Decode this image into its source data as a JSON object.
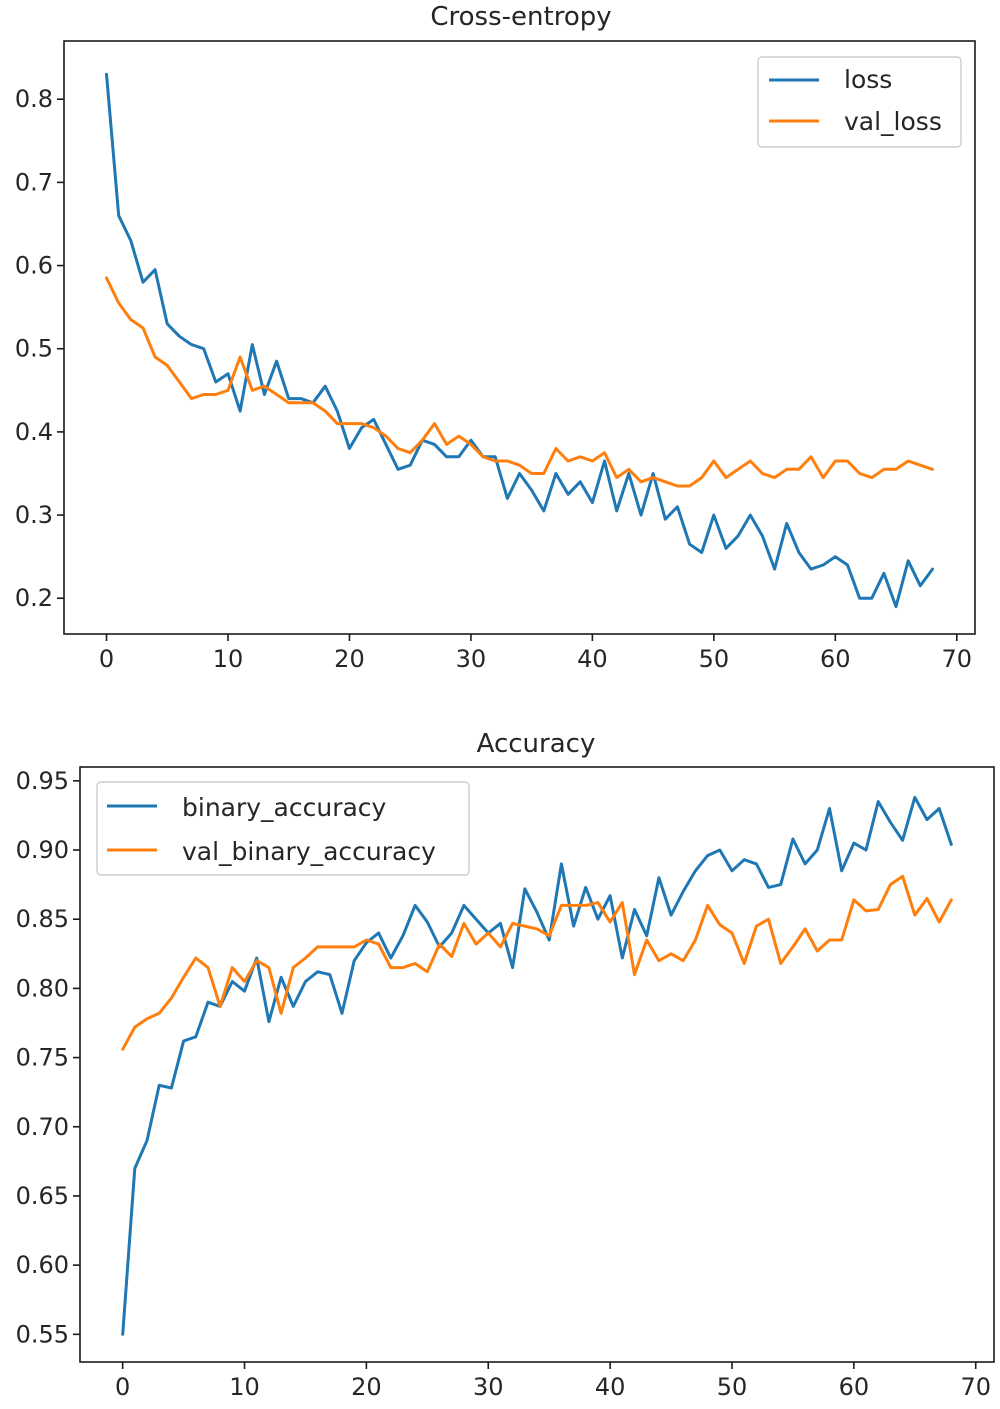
{
  "chart_data": [
    {
      "type": "line",
      "title": "Cross-entropy",
      "xlabel": "",
      "ylabel": "",
      "xlim": [
        -3.5,
        71.5
      ],
      "ylim": [
        0.157,
        0.87
      ],
      "xticks": [
        0,
        10,
        20,
        30,
        40,
        50,
        60,
        70
      ],
      "yticks": [
        0.2,
        0.3,
        0.4,
        0.5,
        0.6,
        0.7,
        0.8
      ],
      "ytick_labels": [
        "0.2",
        "0.3",
        "0.4",
        "0.5",
        "0.6",
        "0.7",
        "0.8"
      ],
      "legend_position": "top-right",
      "x": [
        0,
        1,
        2,
        3,
        4,
        5,
        6,
        7,
        8,
        9,
        10,
        11,
        12,
        13,
        14,
        15,
        16,
        17,
        18,
        19,
        20,
        21,
        22,
        23,
        24,
        25,
        26,
        27,
        28,
        29,
        30,
        31,
        32,
        33,
        34,
        35,
        36,
        37,
        38,
        39,
        40,
        41,
        42,
        43,
        44,
        45,
        46,
        47,
        48,
        49,
        50,
        51,
        52,
        53,
        54,
        55,
        56,
        57,
        58,
        59,
        60,
        61,
        62,
        63,
        64,
        65,
        66,
        67,
        68
      ],
      "series": [
        {
          "name": "loss",
          "color": "#1f77b4",
          "values": [
            0.83,
            0.66,
            0.63,
            0.58,
            0.595,
            0.53,
            0.515,
            0.505,
            0.5,
            0.46,
            0.47,
            0.425,
            0.505,
            0.445,
            0.485,
            0.44,
            0.44,
            0.435,
            0.455,
            0.425,
            0.38,
            0.405,
            0.415,
            0.385,
            0.355,
            0.36,
            0.39,
            0.385,
            0.37,
            0.37,
            0.39,
            0.37,
            0.37,
            0.32,
            0.35,
            0.33,
            0.305,
            0.35,
            0.325,
            0.34,
            0.315,
            0.365,
            0.305,
            0.35,
            0.3,
            0.35,
            0.295,
            0.31,
            0.265,
            0.255,
            0.3,
            0.26,
            0.275,
            0.3,
            0.275,
            0.235,
            0.29,
            0.255,
            0.235,
            0.24,
            0.25,
            0.24,
            0.2,
            0.2,
            0.23,
            0.19,
            0.245,
            0.215,
            0.235
          ]
        },
        {
          "name": "val_loss",
          "color": "#ff7f0e",
          "values": [
            0.585,
            0.555,
            0.535,
            0.525,
            0.49,
            0.48,
            0.46,
            0.44,
            0.445,
            0.445,
            0.45,
            0.49,
            0.45,
            0.455,
            0.445,
            0.435,
            0.435,
            0.435,
            0.425,
            0.41,
            0.41,
            0.41,
            0.405,
            0.395,
            0.38,
            0.375,
            0.39,
            0.41,
            0.385,
            0.395,
            0.385,
            0.37,
            0.365,
            0.365,
            0.36,
            0.35,
            0.35,
            0.38,
            0.365,
            0.37,
            0.365,
            0.375,
            0.345,
            0.355,
            0.34,
            0.345,
            0.34,
            0.335,
            0.335,
            0.345,
            0.365,
            0.345,
            0.355,
            0.365,
            0.35,
            0.345,
            0.355,
            0.355,
            0.37,
            0.345,
            0.365,
            0.365,
            0.35,
            0.345,
            0.355,
            0.355,
            0.365,
            0.36,
            0.355
          ]
        }
      ]
    },
    {
      "type": "line",
      "title": "Accuracy",
      "xlabel": "",
      "ylabel": "",
      "xlim": [
        -3.5,
        71.5
      ],
      "ylim": [
        0.53,
        0.96
      ],
      "xticks": [
        0,
        10,
        20,
        30,
        40,
        50,
        60,
        70
      ],
      "yticks": [
        0.55,
        0.6,
        0.65,
        0.7,
        0.75,
        0.8,
        0.85,
        0.9,
        0.95
      ],
      "ytick_labels": [
        "0.55",
        "0.60",
        "0.65",
        "0.70",
        "0.75",
        "0.80",
        "0.85",
        "0.90",
        "0.95"
      ],
      "legend_position": "top-left",
      "x": [
        0,
        1,
        2,
        3,
        4,
        5,
        6,
        7,
        8,
        9,
        10,
        11,
        12,
        13,
        14,
        15,
        16,
        17,
        18,
        19,
        20,
        21,
        22,
        23,
        24,
        25,
        26,
        27,
        28,
        29,
        30,
        31,
        32,
        33,
        34,
        35,
        36,
        37,
        38,
        39,
        40,
        41,
        42,
        43,
        44,
        45,
        46,
        47,
        48,
        49,
        50,
        51,
        52,
        53,
        54,
        55,
        56,
        57,
        58,
        59,
        60,
        61,
        62,
        63,
        64,
        65,
        66,
        67,
        68
      ],
      "series": [
        {
          "name": "binary_accuracy",
          "color": "#1f77b4",
          "values": [
            0.55,
            0.67,
            0.69,
            0.73,
            0.728,
            0.762,
            0.765,
            0.79,
            0.787,
            0.805,
            0.798,
            0.822,
            0.776,
            0.808,
            0.787,
            0.805,
            0.812,
            0.81,
            0.782,
            0.82,
            0.833,
            0.84,
            0.822,
            0.838,
            0.86,
            0.848,
            0.83,
            0.84,
            0.86,
            0.85,
            0.84,
            0.847,
            0.815,
            0.872,
            0.855,
            0.835,
            0.89,
            0.845,
            0.873,
            0.85,
            0.867,
            0.822,
            0.857,
            0.838,
            0.88,
            0.853,
            0.87,
            0.885,
            0.896,
            0.9,
            0.885,
            0.893,
            0.89,
            0.873,
            0.875,
            0.908,
            0.89,
            0.9,
            0.93,
            0.885,
            0.905,
            0.9,
            0.935,
            0.92,
            0.907,
            0.938,
            0.922,
            0.93,
            0.904
          ]
        },
        {
          "name": "val_binary_accuracy",
          "color": "#ff7f0e",
          "values": [
            0.756,
            0.772,
            0.778,
            0.782,
            0.793,
            0.808,
            0.822,
            0.815,
            0.787,
            0.815,
            0.805,
            0.82,
            0.815,
            0.782,
            0.815,
            0.822,
            0.83,
            0.83,
            0.83,
            0.83,
            0.835,
            0.832,
            0.815,
            0.815,
            0.818,
            0.812,
            0.832,
            0.823,
            0.847,
            0.832,
            0.84,
            0.83,
            0.847,
            0.845,
            0.843,
            0.838,
            0.86,
            0.86,
            0.86,
            0.862,
            0.848,
            0.862,
            0.81,
            0.835,
            0.82,
            0.825,
            0.82,
            0.835,
            0.86,
            0.846,
            0.84,
            0.818,
            0.845,
            0.85,
            0.818,
            0.83,
            0.843,
            0.827,
            0.835,
            0.835,
            0.864,
            0.856,
            0.857,
            0.875,
            0.881,
            0.853,
            0.865,
            0.848,
            0.864
          ]
        }
      ]
    }
  ]
}
